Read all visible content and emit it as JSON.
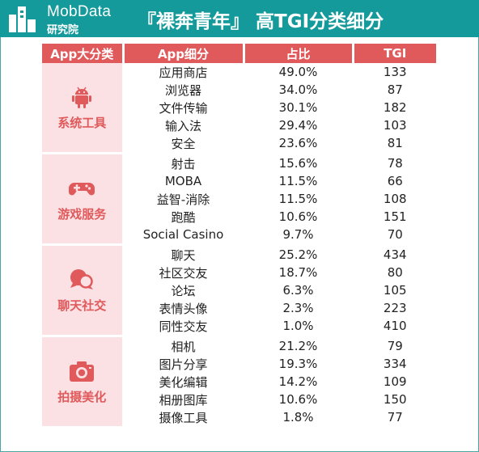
{
  "brand": {
    "name": "MobData",
    "sub": "研究院"
  },
  "title": "『裸奔青年』 高TGI分类细分",
  "colors": {
    "header_bg": "#159a9c",
    "accent": "#e05a5c",
    "highlight_text": "#e06060",
    "category_bg": "#fbe1e4"
  },
  "chart_data": {
    "type": "table",
    "columns": [
      "App大分类",
      "App细分",
      "占比",
      "TGI"
    ],
    "groups": [
      {
        "category": "系统工具",
        "icon": "android-icon",
        "rows": [
          {
            "app": "应用商店",
            "share": "49.0%",
            "tgi": "133",
            "highlight": true
          },
          {
            "app": "浏览器",
            "share": "34.0%",
            "tgi": "87",
            "highlight": false
          },
          {
            "app": "文件传输",
            "share": "30.1%",
            "tgi": "182",
            "highlight": true
          },
          {
            "app": "输入法",
            "share": "29.4%",
            "tgi": "103",
            "highlight": true
          },
          {
            "app": "安全",
            "share": "23.6%",
            "tgi": "81",
            "highlight": false
          }
        ]
      },
      {
        "category": "游戏服务",
        "icon": "gamepad-icon",
        "rows": [
          {
            "app": "射击",
            "share": "15.6%",
            "tgi": "78",
            "highlight": false
          },
          {
            "app": "MOBA",
            "share": "11.5%",
            "tgi": "66",
            "highlight": false
          },
          {
            "app": "益智-消除",
            "share": "11.5%",
            "tgi": "108",
            "highlight": true
          },
          {
            "app": "跑酷",
            "share": "10.6%",
            "tgi": "151",
            "highlight": true
          },
          {
            "app": "Social Casino",
            "share": "9.7%",
            "tgi": "70",
            "highlight": false
          }
        ]
      },
      {
        "category": "聊天社交",
        "icon": "chat-bubbles-icon",
        "rows": [
          {
            "app": "聊天",
            "share": "25.2%",
            "tgi": "434",
            "highlight": true
          },
          {
            "app": "社区交友",
            "share": "18.7%",
            "tgi": "80",
            "highlight": false
          },
          {
            "app": "论坛",
            "share": "6.3%",
            "tgi": "105",
            "highlight": true
          },
          {
            "app": "表情头像",
            "share": "2.3%",
            "tgi": "223",
            "highlight": true
          },
          {
            "app": "同性交友",
            "share": "1.0%",
            "tgi": "410",
            "highlight": true
          }
        ]
      },
      {
        "category": "拍摄美化",
        "icon": "camera-icon",
        "rows": [
          {
            "app": "相机",
            "share": "21.2%",
            "tgi": "79",
            "highlight": false
          },
          {
            "app": "图片分享",
            "share": "19.3%",
            "tgi": "334",
            "highlight": true
          },
          {
            "app": "美化编辑",
            "share": "14.2%",
            "tgi": "109",
            "highlight": true
          },
          {
            "app": "相册图库",
            "share": "10.6%",
            "tgi": "150",
            "highlight": true
          },
          {
            "app": "摄像工具",
            "share": "1.8%",
            "tgi": "77",
            "highlight": false
          }
        ]
      }
    ]
  }
}
